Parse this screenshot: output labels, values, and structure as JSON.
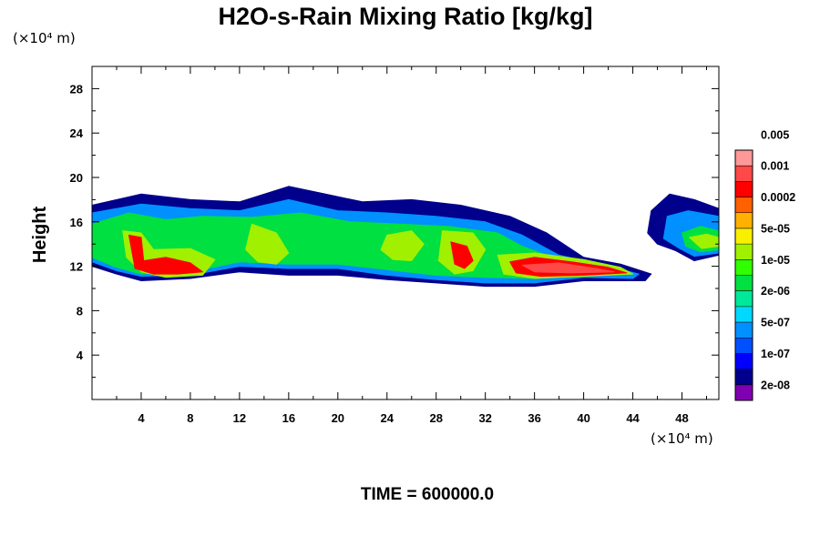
{
  "chart_data": {
    "type": "heatmap",
    "title": "H2O-s-Rain Mixing Ratio [kg/kg]",
    "ylabel": "Height",
    "x_unit": "(×10⁴ m)",
    "y_unit": "(×10⁴ m)",
    "xlim": [
      0,
      51
    ],
    "ylim": [
      0,
      30
    ],
    "x_ticks": [
      4,
      8,
      12,
      16,
      20,
      24,
      28,
      32,
      36,
      40,
      44,
      48
    ],
    "y_ticks": [
      4,
      8,
      12,
      16,
      20,
      24,
      28
    ],
    "colorbar": {
      "colors": [
        "#7f00b0",
        "#00008c",
        "#0000ff",
        "#0050ff",
        "#0090ff",
        "#00d8ff",
        "#00e89a",
        "#00e040",
        "#30ff00",
        "#a0f000",
        "#f8f000",
        "#ffb000",
        "#ff6000",
        "#ff0000",
        "#ff4848",
        "#ff9898"
      ],
      "labels": [
        "2e-08",
        "1e-07",
        "5e-07",
        "2e-06",
        "1e-05",
        "5e-05",
        "0.0002",
        "0.001",
        "0.005"
      ]
    },
    "regions": [
      {
        "level": 1,
        "points": [
          [
            0,
            17.5
          ],
          [
            4,
            18.5
          ],
          [
            8,
            18
          ],
          [
            12,
            17.8
          ],
          [
            16,
            19.2
          ],
          [
            19,
            18.5
          ],
          [
            22,
            17.8
          ],
          [
            26,
            18
          ],
          [
            30,
            17.5
          ],
          [
            34,
            16.5
          ],
          [
            37,
            15
          ],
          [
            40,
            12.8
          ],
          [
            43,
            12.2
          ],
          [
            45.5,
            11.3
          ],
          [
            45,
            10.7
          ],
          [
            40,
            10.7
          ],
          [
            36,
            10.2
          ],
          [
            32,
            10.2
          ],
          [
            28,
            10.5
          ],
          [
            24,
            10.8
          ],
          [
            20,
            11.2
          ],
          [
            16,
            11.2
          ],
          [
            12,
            11.5
          ],
          [
            8,
            10.9
          ],
          [
            4,
            10.7
          ],
          [
            2,
            11.3
          ],
          [
            0,
            12
          ]
        ]
      },
      {
        "level": 4,
        "points": [
          [
            0,
            16.8
          ],
          [
            4,
            17.6
          ],
          [
            8,
            17.2
          ],
          [
            12,
            17
          ],
          [
            16,
            18
          ],
          [
            20,
            17
          ],
          [
            24,
            16.8
          ],
          [
            28,
            16.5
          ],
          [
            32,
            16
          ],
          [
            35,
            14.8
          ],
          [
            38,
            13
          ],
          [
            42,
            12
          ],
          [
            44.5,
            11.3
          ],
          [
            44,
            10.9
          ],
          [
            40,
            11
          ],
          [
            36,
            10.5
          ],
          [
            32,
            10.5
          ],
          [
            28,
            10.8
          ],
          [
            24,
            11.2
          ],
          [
            20,
            11.8
          ],
          [
            16,
            11.8
          ],
          [
            12,
            12
          ],
          [
            8,
            11.2
          ],
          [
            4,
            11.1
          ],
          [
            2,
            11.6
          ],
          [
            0,
            12.4
          ]
        ]
      },
      {
        "level": 7,
        "points": [
          [
            0,
            15.8
          ],
          [
            3,
            16.8
          ],
          [
            6,
            16.2
          ],
          [
            9,
            16.5
          ],
          [
            13,
            16.4
          ],
          [
            17,
            16.8
          ],
          [
            21,
            16
          ],
          [
            25,
            15.8
          ],
          [
            29,
            15.6
          ],
          [
            33,
            15
          ],
          [
            35,
            13.8
          ],
          [
            38,
            12.6
          ],
          [
            41,
            11.9
          ],
          [
            43,
            11.3
          ],
          [
            40,
            11.2
          ],
          [
            36,
            10.9
          ],
          [
            32,
            11
          ],
          [
            28,
            11.2
          ],
          [
            24,
            11.7
          ],
          [
            20,
            12.2
          ],
          [
            16,
            12.2
          ],
          [
            12,
            12.4
          ],
          [
            8,
            11.5
          ],
          [
            4,
            11.3
          ],
          [
            2,
            11.9
          ],
          [
            0,
            12.8
          ]
        ]
      },
      {
        "level": 9,
        "points": [
          [
            2.5,
            15.2
          ],
          [
            4,
            15
          ],
          [
            5,
            13.5
          ],
          [
            8,
            13.6
          ],
          [
            10,
            12.6
          ],
          [
            9,
            11.2
          ],
          [
            6,
            11
          ],
          [
            4,
            11.5
          ],
          [
            2.8,
            12.8
          ]
        ]
      },
      {
        "level": 9,
        "points": [
          [
            13,
            15.8
          ],
          [
            15,
            15
          ],
          [
            16,
            13.2
          ],
          [
            15,
            12.2
          ],
          [
            13.5,
            12.4
          ],
          [
            12.5,
            13.5
          ]
        ]
      },
      {
        "level": 9,
        "points": [
          [
            24,
            14.8
          ],
          [
            26,
            15.2
          ],
          [
            27,
            14
          ],
          [
            26,
            12.5
          ],
          [
            24.5,
            12.6
          ],
          [
            23.5,
            13.5
          ]
        ]
      },
      {
        "level": 9,
        "points": [
          [
            28.5,
            15.2
          ],
          [
            31,
            15
          ],
          [
            32,
            13.5
          ],
          [
            31,
            11.6
          ],
          [
            29.5,
            11.3
          ],
          [
            28.2,
            12.5
          ]
        ]
      },
      {
        "level": 9,
        "points": [
          [
            33,
            13
          ],
          [
            36,
            13.2
          ],
          [
            40,
            12.6
          ],
          [
            43,
            11.9
          ],
          [
            44,
            11.3
          ],
          [
            40,
            11.1
          ],
          [
            36,
            10.9
          ],
          [
            33.5,
            11.3
          ]
        ]
      },
      {
        "level": 13,
        "points": [
          [
            3,
            14.8
          ],
          [
            4,
            14.6
          ],
          [
            4.2,
            12.5
          ],
          [
            6,
            12.8
          ],
          [
            8,
            12.3
          ],
          [
            9,
            11.5
          ],
          [
            7,
            11.3
          ],
          [
            5,
            11.3
          ],
          [
            3.5,
            11.8
          ]
        ]
      },
      {
        "level": 13,
        "points": [
          [
            29.2,
            14.2
          ],
          [
            30.5,
            13.8
          ],
          [
            31,
            12.5
          ],
          [
            30.3,
            11.8
          ],
          [
            29.5,
            12.2
          ]
        ]
      },
      {
        "level": 13,
        "points": [
          [
            34,
            12.4
          ],
          [
            36,
            12.8
          ],
          [
            39,
            12.4
          ],
          [
            42,
            11.9
          ],
          [
            43.5,
            11.4
          ],
          [
            40,
            11.2
          ],
          [
            36.5,
            11.1
          ],
          [
            34.5,
            11.4
          ]
        ]
      },
      {
        "level": 14,
        "points": [
          [
            35,
            12.1
          ],
          [
            38,
            12.3
          ],
          [
            41,
            11.8
          ],
          [
            42.5,
            11.5
          ],
          [
            39,
            11.4
          ],
          [
            36,
            11.5
          ]
        ]
      },
      {
        "level": 1,
        "points": [
          [
            45.5,
            17
          ],
          [
            47,
            18.5
          ],
          [
            49,
            18
          ],
          [
            51,
            17.2
          ],
          [
            51,
            13
          ],
          [
            49,
            12.5
          ],
          [
            47.5,
            13.4
          ],
          [
            46,
            14
          ],
          [
            45.2,
            15
          ]
        ]
      },
      {
        "level": 4,
        "points": [
          [
            46.8,
            16.5
          ],
          [
            48.5,
            17
          ],
          [
            51,
            16.5
          ],
          [
            51,
            13.2
          ],
          [
            49,
            12.9
          ],
          [
            47.8,
            13.6
          ],
          [
            46.5,
            14.5
          ]
        ]
      },
      {
        "level": 7,
        "points": [
          [
            48,
            15
          ],
          [
            49.5,
            15.6
          ],
          [
            51,
            15.2
          ],
          [
            51,
            13.5
          ],
          [
            49.5,
            13.3
          ],
          [
            48.3,
            13.8
          ]
        ]
      },
      {
        "level": 9,
        "points": [
          [
            48.6,
            14.6
          ],
          [
            50,
            14.9
          ],
          [
            51,
            14.6
          ],
          [
            51,
            13.8
          ],
          [
            49.6,
            13.6
          ]
        ]
      }
    ]
  },
  "footer": {
    "time_label": "TIME = 600000.0"
  }
}
